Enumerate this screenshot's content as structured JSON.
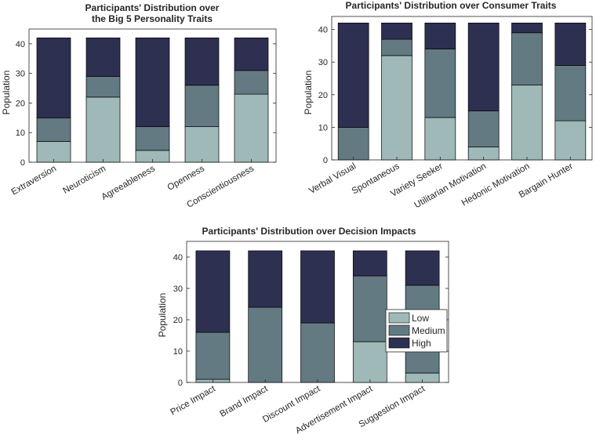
{
  "colors": {
    "low": "#9fb8b8",
    "medium": "#637a82",
    "high": "#2e3052"
  },
  "legend": {
    "low": "Low",
    "medium": "Medium",
    "high": "High"
  },
  "chart_data": [
    {
      "type": "bar",
      "stacked": true,
      "title": [
        "Participants' Distribution over",
        "the Big 5 Personality Traits"
      ],
      "ylabel": "Population",
      "xlabel": "",
      "ylim": [
        0,
        45
      ],
      "yticks": [
        0,
        10,
        20,
        30,
        40
      ],
      "categories": [
        "Extraversion",
        "Neuroticism",
        "Agreeableness",
        "Openness",
        "Conscientiousness"
      ],
      "series": [
        {
          "name": "Low",
          "values": [
            7,
            22,
            4,
            12,
            23
          ]
        },
        {
          "name": "Medium",
          "values": [
            8,
            7,
            8,
            14,
            8
          ]
        },
        {
          "name": "High",
          "values": [
            27,
            13,
            30,
            16,
            11
          ]
        }
      ]
    },
    {
      "type": "bar",
      "stacked": true,
      "title": [
        "Participants' Distribution over Consumer Traits"
      ],
      "ylabel": "Population",
      "xlabel": "",
      "ylim": [
        0,
        44
      ],
      "yticks": [
        0,
        10,
        20,
        30,
        40
      ],
      "categories": [
        "Verbal Visual",
        "Spontaneous",
        "Variety Seeker",
        "Utilitarian Motivation",
        "Hedonic Motivation",
        "Bargain Hunter"
      ],
      "series": [
        {
          "name": "Low",
          "values": [
            0,
            32,
            13,
            4,
            23,
            12
          ]
        },
        {
          "name": "Medium",
          "values": [
            10,
            5,
            21,
            11,
            16,
            17
          ]
        },
        {
          "name": "High",
          "values": [
            32,
            5,
            8,
            27,
            3,
            13
          ]
        }
      ]
    },
    {
      "type": "bar",
      "stacked": true,
      "title": [
        "Participants' Distribution over Decision Impacts"
      ],
      "ylabel": "Population",
      "xlabel": "",
      "ylim": [
        0,
        45
      ],
      "yticks": [
        0,
        10,
        20,
        30,
        40
      ],
      "categories": [
        "Price Impact",
        "Brand Impact",
        "Discount Impact",
        "Advertisement Impact",
        "Suggestion Impact"
      ],
      "legend_position": "right-middle",
      "series": [
        {
          "name": "Low",
          "values": [
            1,
            0,
            0,
            13,
            3
          ]
        },
        {
          "name": "Medium",
          "values": [
            15,
            24,
            19,
            21,
            28
          ]
        },
        {
          "name": "High",
          "values": [
            26,
            18,
            23,
            8,
            11
          ]
        }
      ]
    }
  ]
}
